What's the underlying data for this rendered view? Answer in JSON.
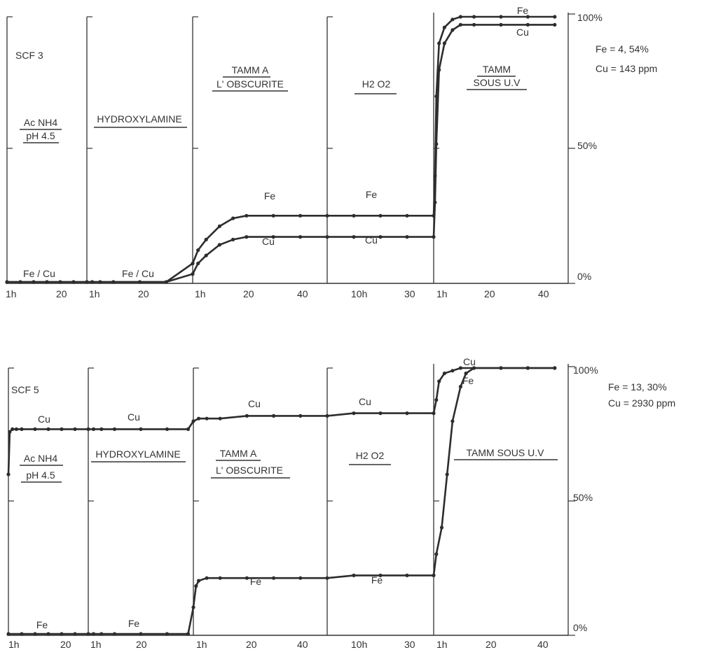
{
  "chart_data": [
    {
      "type": "line",
      "sample": "SCF 3",
      "info": [
        "Fe = 4, 54%",
        "Cu = 143 ppm"
      ],
      "y_ticks": [
        "100%",
        "50%",
        "0%"
      ],
      "ylim": [
        0,
        100
      ],
      "stages": [
        {
          "label": [
            "Ac NH4",
            "pH 4.5"
          ],
          "ticks": [
            "1h",
            "20"
          ],
          "duration": 30
        },
        {
          "label": [
            "HYDROXYLAMINE"
          ],
          "ticks": [
            "1h",
            "20"
          ],
          "duration": 40
        },
        {
          "label": [
            "TAMM A",
            "L' OBSCURITE"
          ],
          "ticks": [
            "1h",
            "20",
            "40"
          ],
          "duration": 50
        },
        {
          "label": [
            "H2 O2"
          ],
          "ticks": [
            "10h",
            "30"
          ],
          "duration": 40
        },
        {
          "label": [
            "TAMM",
            "SOUS U.V"
          ],
          "ticks": [
            "1h",
            "20",
            "40"
          ],
          "duration": 50
        }
      ],
      "series": [
        {
          "name": "Fe",
          "points": [
            [
              0,
              0
            ],
            [
              5,
              0
            ],
            [
              10,
              0
            ],
            [
              15,
              0
            ],
            [
              20,
              0
            ],
            [
              25,
              0
            ],
            [
              30,
              0
            ],
            [
              32,
              0
            ],
            [
              35,
              0
            ],
            [
              40,
              0
            ],
            [
              50,
              0
            ],
            [
              60,
              0
            ],
            [
              70,
              7
            ],
            [
              72,
              12
            ],
            [
              75,
              16
            ],
            [
              80,
              21
            ],
            [
              85,
              24
            ],
            [
              90,
              25
            ],
            [
              100,
              25
            ],
            [
              110,
              25
            ],
            [
              120,
              25
            ],
            [
              130,
              25
            ],
            [
              140,
              25
            ],
            [
              150,
              25
            ],
            [
              160,
              25
            ],
            [
              160.5,
              40
            ],
            [
              161,
              70
            ],
            [
              162,
              90
            ],
            [
              164,
              96
            ],
            [
              167,
              99
            ],
            [
              170,
              100
            ],
            [
              175,
              100
            ],
            [
              185,
              100
            ],
            [
              195,
              100
            ],
            [
              205,
              100
            ]
          ],
          "labels": [
            "Fe",
            "Fe",
            "Fe"
          ]
        },
        {
          "name": "Cu",
          "points": [
            [
              0,
              0
            ],
            [
              5,
              0
            ],
            [
              10,
              0
            ],
            [
              15,
              0
            ],
            [
              20,
              0
            ],
            [
              25,
              0
            ],
            [
              30,
              0
            ],
            [
              32,
              0
            ],
            [
              35,
              0
            ],
            [
              40,
              0
            ],
            [
              50,
              0
            ],
            [
              60,
              0
            ],
            [
              70,
              3
            ],
            [
              72,
              7
            ],
            [
              75,
              10
            ],
            [
              80,
              14
            ],
            [
              85,
              16
            ],
            [
              90,
              17
            ],
            [
              100,
              17
            ],
            [
              110,
              17
            ],
            [
              120,
              17
            ],
            [
              130,
              17
            ],
            [
              140,
              17
            ],
            [
              150,
              17
            ],
            [
              160,
              17
            ],
            [
              160.5,
              30
            ],
            [
              161,
              52
            ],
            [
              162,
              80
            ],
            [
              164,
              90
            ],
            [
              167,
              95
            ],
            [
              170,
              97
            ],
            [
              175,
              97
            ],
            [
              185,
              97
            ],
            [
              195,
              97
            ],
            [
              205,
              97
            ]
          ],
          "labels": [
            "Cu",
            "Cu",
            "Cu"
          ]
        }
      ],
      "shared_labels": [
        "Fe / Cu",
        "Fe / Cu"
      ]
    },
    {
      "type": "line",
      "sample": "SCF 5",
      "info": [
        "Fe = 13, 30%",
        "Cu = 2930 ppm"
      ],
      "y_ticks": [
        "100%",
        "50%",
        "0%"
      ],
      "ylim": [
        0,
        100
      ],
      "stages": [
        {
          "label": [
            "Ac NH4",
            "pH 4.5"
          ],
          "ticks": [
            "1h",
            "20"
          ],
          "duration": 30
        },
        {
          "label": [
            "HYDROXYLAMINE"
          ],
          "ticks": [
            "1h",
            "20"
          ],
          "duration": 40
        },
        {
          "label": [
            "TAMM A",
            "L' OBSCURITE"
          ],
          "ticks": [
            "1h",
            "20",
            "40"
          ],
          "duration": 50
        },
        {
          "label": [
            "H2 O2"
          ],
          "ticks": [
            "10h",
            "30"
          ],
          "duration": 40
        },
        {
          "label": [
            "TAMM SOUS U.V"
          ],
          "ticks": [
            "1h",
            "20",
            "40"
          ],
          "duration": 50
        }
      ],
      "series": [
        {
          "name": "Cu",
          "points": [
            [
              0,
              60
            ],
            [
              0.5,
              76
            ],
            [
              1.5,
              77
            ],
            [
              3,
              77
            ],
            [
              5,
              77
            ],
            [
              10,
              77
            ],
            [
              15,
              77
            ],
            [
              20,
              77
            ],
            [
              25,
              77
            ],
            [
              30,
              77
            ],
            [
              32,
              77
            ],
            [
              35,
              77
            ],
            [
              40,
              77
            ],
            [
              50,
              77
            ],
            [
              60,
              77
            ],
            [
              68,
              77
            ],
            [
              70,
              80
            ],
            [
              72,
              81
            ],
            [
              75,
              81
            ],
            [
              80,
              81
            ],
            [
              90,
              82
            ],
            [
              100,
              82
            ],
            [
              110,
              82
            ],
            [
              120,
              82
            ],
            [
              130,
              83
            ],
            [
              140,
              83
            ],
            [
              150,
              83
            ],
            [
              160,
              83
            ],
            [
              161,
              88
            ],
            [
              162,
              95
            ],
            [
              164,
              98
            ],
            [
              167,
              99
            ],
            [
              170,
              100
            ],
            [
              175,
              100
            ],
            [
              185,
              100
            ],
            [
              195,
              100
            ],
            [
              205,
              100
            ]
          ],
          "labels": [
            "Cu",
            "Cu",
            "Cu",
            "Cu",
            "Cu"
          ]
        },
        {
          "name": "Fe",
          "points": [
            [
              0,
              0
            ],
            [
              5,
              0
            ],
            [
              10,
              0
            ],
            [
              15,
              0
            ],
            [
              20,
              0
            ],
            [
              25,
              0
            ],
            [
              30,
              0
            ],
            [
              32,
              0
            ],
            [
              35,
              0
            ],
            [
              40,
              0
            ],
            [
              50,
              0
            ],
            [
              60,
              0
            ],
            [
              68,
              0
            ],
            [
              70,
              10
            ],
            [
              71,
              18
            ],
            [
              72,
              20
            ],
            [
              75,
              21
            ],
            [
              80,
              21
            ],
            [
              90,
              21
            ],
            [
              100,
              21
            ],
            [
              110,
              21
            ],
            [
              120,
              21
            ],
            [
              130,
              22
            ],
            [
              140,
              22
            ],
            [
              150,
              22
            ],
            [
              160,
              22
            ],
            [
              161,
              30
            ],
            [
              163,
              40
            ],
            [
              165,
              60
            ],
            [
              167,
              80
            ],
            [
              170,
              93
            ],
            [
              172,
              98
            ],
            [
              175,
              100
            ],
            [
              185,
              100
            ],
            [
              195,
              100
            ],
            [
              205,
              100
            ]
          ],
          "labels": [
            "Fe",
            "Fe",
            "Fe",
            "Fe",
            "Fe"
          ]
        }
      ]
    }
  ]
}
